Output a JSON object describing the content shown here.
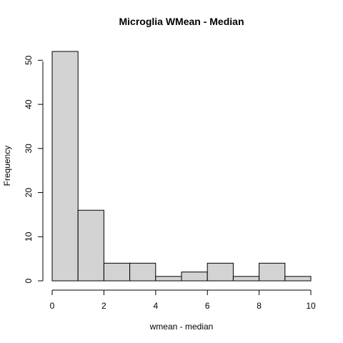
{
  "chart_data": {
    "type": "bar",
    "title": "Microglia WMean - Median",
    "xlabel": "wmean - median",
    "ylabel": "Frequency",
    "bins": [
      {
        "start": 0,
        "end": 1,
        "count": 52
      },
      {
        "start": 1,
        "end": 2,
        "count": 16
      },
      {
        "start": 2,
        "end": 3,
        "count": 4
      },
      {
        "start": 3,
        "end": 4,
        "count": 4
      },
      {
        "start": 4,
        "end": 5,
        "count": 1
      },
      {
        "start": 5,
        "end": 6,
        "count": 2
      },
      {
        "start": 6,
        "end": 7,
        "count": 4
      },
      {
        "start": 7,
        "end": 8,
        "count": 1
      },
      {
        "start": 8,
        "end": 9,
        "count": 4
      },
      {
        "start": 9,
        "end": 10,
        "count": 1
      }
    ],
    "xlim": [
      0,
      10
    ],
    "ylim": [
      0,
      52
    ],
    "xticks": [
      "0",
      "2",
      "4",
      "6",
      "8",
      "10"
    ],
    "yticks": [
      "0",
      "10",
      "20",
      "30",
      "40",
      "50"
    ],
    "bar_fill": "#d3d3d3",
    "bar_stroke": "#000000",
    "grid": false,
    "legend": "none"
  }
}
